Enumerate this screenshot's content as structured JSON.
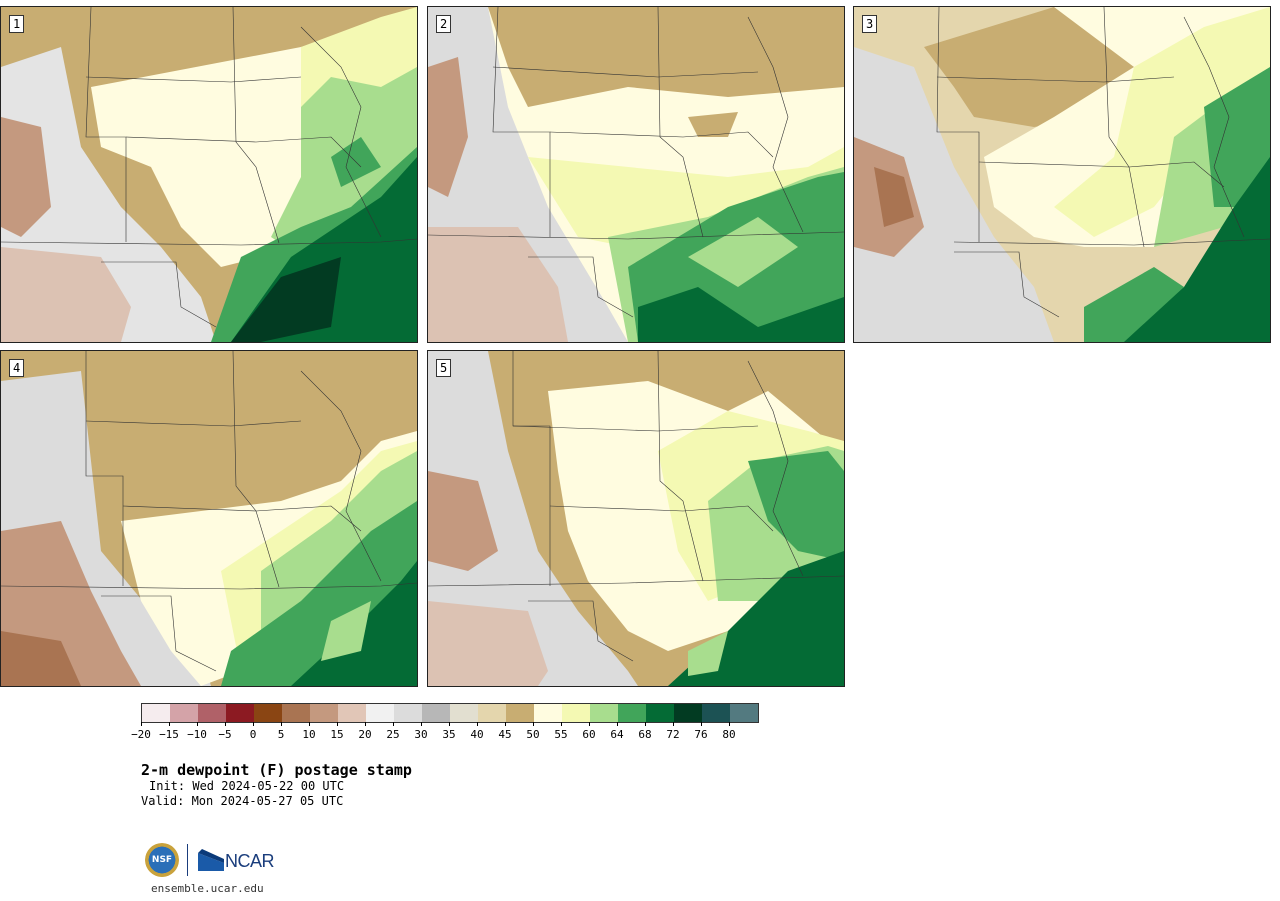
{
  "panels": [
    {
      "label": "1"
    },
    {
      "label": "2"
    },
    {
      "label": "3"
    },
    {
      "label": "4"
    },
    {
      "label": "5"
    }
  ],
  "colorbar": {
    "colors": [
      "#f5ecee",
      "#d4a3a8",
      "#b06168",
      "#8c1a22",
      "#8a4513",
      "#a97452",
      "#c4997f",
      "#e1c6b7",
      "#f1f1f1",
      "#dcdcdc",
      "#b7b7b7",
      "#e2dfd0",
      "#e4d6ad",
      "#c8ad72",
      "#fffce0",
      "#f4f9b3",
      "#a8dd8e",
      "#41a55a",
      "#046b35",
      "#023b22",
      "#1c5254",
      "#537a80"
    ],
    "tick_labels": [
      "−20",
      "−15",
      "−10",
      "−5",
      "0",
      "5",
      "10",
      "15",
      "20",
      "25",
      "30",
      "35",
      "40",
      "45",
      "50",
      "55",
      "60",
      "64",
      "68",
      "72",
      "76",
      "80"
    ]
  },
  "title": "2-m dewpoint (F) postage stamp",
  "init": "Init: Wed 2024-05-22 00 UTC",
  "valid": "Valid: Mon 2024-05-27 05 UTC",
  "logos": {
    "nsf": "NSF",
    "ncar": "NCAR"
  },
  "website": "ensemble.ucar.edu"
}
